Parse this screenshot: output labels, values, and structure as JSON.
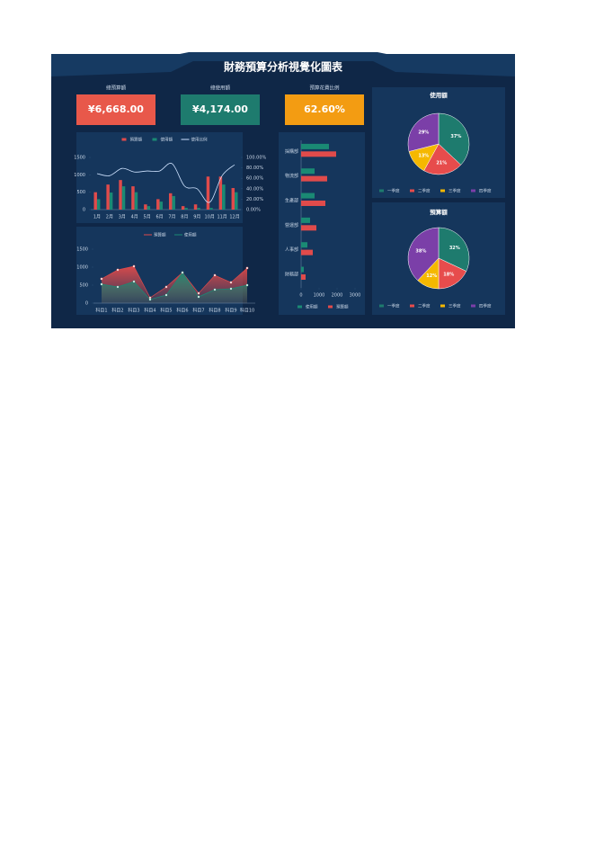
{
  "header": {
    "title": "財務預算分析視覺化圖表"
  },
  "kpis": [
    {
      "label": "總預算額",
      "value": "¥6,668.00",
      "color": "#e8584a"
    },
    {
      "label": "總使用額",
      "value": "¥4,174.00",
      "color": "#1e7b6e"
    },
    {
      "label": "預算花費比例",
      "value": "62.60%",
      "color": "#f39c12"
    }
  ],
  "chart_data": [
    {
      "type": "bar",
      "categories": [
        "1月",
        "2月",
        "3月",
        "4月",
        "5月",
        "6月",
        "7月",
        "8月",
        "9月",
        "10月",
        "11月",
        "12月"
      ],
      "series": [
        {
          "name": "預算額",
          "color": "#e04b4b",
          "values": [
            500,
            720,
            850,
            670,
            150,
            300,
            470,
            100,
            150,
            950,
            950,
            620
          ]
        },
        {
          "name": "使用額",
          "color": "#1a8a74",
          "values": [
            300,
            490,
            670,
            500,
            100,
            230,
            390,
            50,
            50,
            50,
            720,
            500
          ]
        },
        {
          "name": "使用比例",
          "color": "#cfe3ff",
          "type": "line",
          "axis": "y2",
          "values": [
            69,
            65,
            79,
            72,
            74,
            74,
            88,
            45,
            40,
            14,
            65,
            86
          ]
        }
      ],
      "ylim": [
        0,
        1500
      ],
      "yticks": [
        0,
        500,
        1000,
        1500
      ],
      "y2lim": [
        0,
        100
      ],
      "y2ticks": [
        {
          "value": 0,
          "label": "0.00%"
        },
        {
          "value": 20,
          "label": "20.00%"
        },
        {
          "value": 40,
          "label": "40.00%"
        },
        {
          "value": 60,
          "label": "60.00%"
        },
        {
          "value": 80,
          "label": "80.00%"
        },
        {
          "value": 100,
          "label": "100.00%"
        }
      ]
    },
    {
      "type": "area",
      "categories": [
        "科目1",
        "科目2",
        "科目3",
        "科目4",
        "科目5",
        "科目6",
        "科目7",
        "科目8",
        "科目9",
        "科目10"
      ],
      "series": [
        {
          "name": "預算額",
          "color": "#e04b4b",
          "values": [
            675,
            925,
            1025,
            150,
            450,
            850,
            275,
            775,
            575,
            975
          ]
        },
        {
          "name": "使用額",
          "color": "#1a8a74",
          "values": [
            525,
            450,
            600,
            100,
            225,
            850,
            175,
            375,
            400,
            500
          ]
        }
      ],
      "ylim": [
        0,
        1500
      ],
      "yticks": [
        0,
        500,
        1000,
        1500
      ]
    },
    {
      "type": "barh",
      "categories": [
        "採購部",
        "物流部",
        "生產部",
        "營運部",
        "人事部",
        "財務部"
      ],
      "series": [
        {
          "name": "使用額",
          "color": "#1a8a74",
          "values": [
            1550,
            750,
            750,
            500,
            350,
            150
          ]
        },
        {
          "name": "預算額",
          "color": "#e04b4b",
          "values": [
            1950,
            1450,
            1350,
            850,
            650,
            250
          ]
        }
      ],
      "xlim": [
        0,
        3000
      ],
      "xticks": [
        0,
        1000,
        2000,
        3000
      ]
    },
    {
      "type": "pie",
      "title": "使用額",
      "categories": [
        "一季度",
        "二季度",
        "三季度",
        "四季度"
      ],
      "colors": [
        "#1e7b6e",
        "#e74c4c",
        "#f5b800",
        "#7b3fa8"
      ],
      "values": [
        37,
        21,
        13,
        29
      ],
      "value_labels": [
        "37%",
        "21%",
        "13%",
        "29%"
      ]
    },
    {
      "type": "pie",
      "title": "預算額",
      "categories": [
        "一季度",
        "二季度",
        "三季度",
        "四季度"
      ],
      "colors": [
        "#1e7b6e",
        "#e74c4c",
        "#f5b800",
        "#7b3fa8"
      ],
      "values": [
        32,
        18,
        12,
        38
      ],
      "value_labels": [
        "32%",
        "18%",
        "12%",
        "38%"
      ]
    }
  ]
}
